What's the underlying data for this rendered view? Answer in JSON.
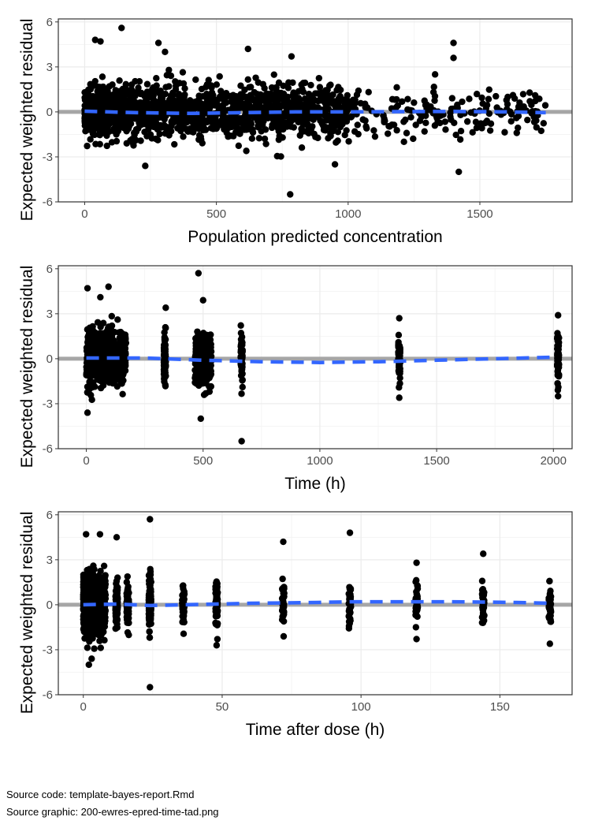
{
  "chart_data": [
    {
      "type": "scatter",
      "xlabel": "Population predicted concentration",
      "ylabel": "Expected weighted residual",
      "xlim": [
        -100,
        1850
      ],
      "ylim": [
        -6,
        6.2
      ],
      "xticks": [
        0,
        500,
        1000,
        1500
      ],
      "xtick_labels": [
        "0",
        "500",
        "1000",
        "1500"
      ],
      "yticks": [
        -6,
        -3,
        0,
        3,
        6
      ],
      "ytick_labels": [
        "-6",
        "-3",
        "0",
        "3",
        "6"
      ],
      "grid": true,
      "reference_line": 0,
      "smooth_x": [
        0,
        200,
        400,
        600,
        800,
        1000,
        1200,
        1400,
        1600,
        1750
      ],
      "smooth_y": [
        0.05,
        -0.05,
        -0.1,
        -0.05,
        0.0,
        0.0,
        0.02,
        0.03,
        0.0,
        -0.05
      ],
      "outliers": [
        [
          40,
          4.8
        ],
        [
          60,
          4.7
        ],
        [
          140,
          5.6
        ],
        [
          280,
          4.6
        ],
        [
          305,
          4.0
        ],
        [
          620,
          4.2
        ],
        [
          785,
          3.7
        ],
        [
          1400,
          4.6
        ],
        [
          1400,
          3.6
        ],
        [
          1420,
          -4.0
        ],
        [
          780,
          -5.5
        ],
        [
          950,
          -3.5
        ],
        [
          230,
          -3.6
        ],
        [
          1330,
          2.5
        ],
        [
          1640,
          -1.4
        ],
        [
          1710,
          1.1
        ]
      ]
    },
    {
      "type": "scatter",
      "xlabel": "Time (h)",
      "ylabel": "Expected weighted residual",
      "xlim": [
        -120,
        2080
      ],
      "ylim": [
        -6,
        6.2
      ],
      "xticks": [
        0,
        500,
        1000,
        1500,
        2000
      ],
      "xtick_labels": [
        "0",
        "500",
        "1000",
        "1500",
        "2000"
      ],
      "yticks": [
        -6,
        -3,
        0,
        3,
        6
      ],
      "ytick_labels": [
        "-6",
        "-3",
        "0",
        "3",
        "6"
      ],
      "grid": true,
      "reference_line": 0,
      "smooth_x": [
        0,
        250,
        500,
        750,
        1000,
        1250,
        1500,
        1750,
        2000
      ],
      "smooth_y": [
        0.05,
        0.05,
        -0.1,
        -0.2,
        -0.25,
        -0.2,
        -0.1,
        0.0,
        0.1
      ],
      "outliers": [
        [
          5,
          4.7
        ],
        [
          60,
          4.1
        ],
        [
          95,
          4.8
        ],
        [
          480,
          5.7
        ],
        [
          500,
          3.9
        ],
        [
          665,
          -5.5
        ],
        [
          5,
          -3.6
        ],
        [
          490,
          -4.0
        ],
        [
          340,
          3.4
        ],
        [
          1340,
          2.7
        ],
        [
          2020,
          2.9
        ],
        [
          2020,
          -2.5
        ],
        [
          1340,
          -2.6
        ]
      ]
    },
    {
      "type": "scatter",
      "xlabel": "Time after dose (h)",
      "ylabel": "Expected weighted residual",
      "xlim": [
        -9,
        176
      ],
      "ylim": [
        -6,
        6.2
      ],
      "xticks": [
        0,
        50,
        100,
        150
      ],
      "xtick_labels": [
        "0",
        "50",
        "100",
        "150"
      ],
      "yticks": [
        -6,
        -3,
        0,
        3,
        6
      ],
      "ytick_labels": [
        "-6",
        "-3",
        "0",
        "3",
        "6"
      ],
      "grid": true,
      "reference_line": 0,
      "smooth_x": [
        0,
        12,
        24,
        36,
        48,
        60,
        72,
        84,
        96,
        108,
        120,
        132,
        144,
        156,
        168
      ],
      "smooth_y": [
        0.0,
        0.05,
        -0.05,
        0.0,
        0.05,
        0.1,
        0.12,
        0.15,
        0.2,
        0.2,
        0.2,
        0.2,
        0.18,
        0.15,
        0.1
      ],
      "outliers": [
        [
          1,
          4.7
        ],
        [
          6,
          4.7
        ],
        [
          12,
          4.5
        ],
        [
          24,
          5.7
        ],
        [
          24,
          -5.5
        ],
        [
          2,
          -4.0
        ],
        [
          72,
          4.2
        ],
        [
          96,
          4.8
        ],
        [
          120,
          2.8
        ],
        [
          144,
          3.4
        ],
        [
          3,
          -3.6
        ],
        [
          48,
          -2.7
        ],
        [
          168,
          -2.6
        ]
      ]
    }
  ],
  "footer": {
    "source_code": "Source code: template-bayes-report.Rmd",
    "source_graphic": "Source graphic: 200-ewres-epred-time-tad.png"
  }
}
